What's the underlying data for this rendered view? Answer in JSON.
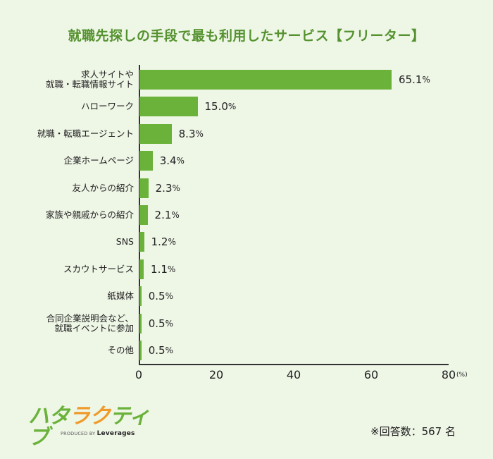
{
  "title": "就職先探しの手段で最も利用したサービス【フリーター】",
  "chart_data": {
    "type": "bar",
    "orientation": "horizontal",
    "title": "就職先探しの手段で最も利用したサービス【フリーター】",
    "categories": [
      "求人サイトや\n就職・転職情報サイト",
      "ハローワーク",
      "就職・転職エージェント",
      "企業ホームページ",
      "友人からの紹介",
      "家族や親戚からの紹介",
      "SNS",
      "スカウトサービス",
      "紙媒体",
      "合同企業説明会など、\n就職イベントに参加",
      "その他"
    ],
    "values": [
      65.1,
      15.0,
      8.3,
      3.4,
      2.3,
      2.1,
      1.2,
      1.1,
      0.5,
      0.5,
      0.5
    ],
    "value_labels": [
      "65.1",
      "15.0",
      "8.3",
      "3.4",
      "2.3",
      "2.1",
      "1.2",
      "1.1",
      "0.5",
      "0.5",
      "0.5"
    ],
    "value_suffix": "%",
    "xlabel": "(%)",
    "ylabel": "",
    "xlim": [
      0,
      80
    ],
    "xticks": [
      "0",
      "20",
      "40",
      "60",
      "80"
    ],
    "grid": false,
    "legend": null,
    "bar_color": "#6ab23a"
  },
  "axis": {
    "unit": "(%)"
  },
  "footer": {
    "logo_chars": [
      "ハ",
      "タ",
      "ラ",
      "ク",
      "テ",
      "ィ",
      "ブ"
    ],
    "produced_by": "PRODUCED BY",
    "brand": "Leverages",
    "respondents": "※回答数：567 名"
  },
  "colors": {
    "background": "#eef6e6",
    "title": "#55922f",
    "bar": "#6ab23a",
    "logo_orange": "#ef9a2a"
  }
}
